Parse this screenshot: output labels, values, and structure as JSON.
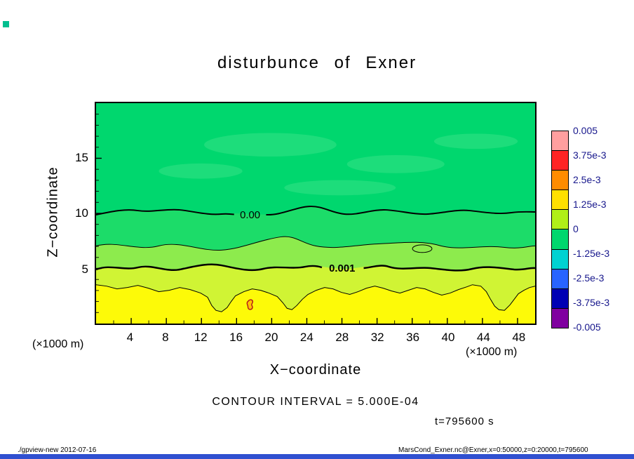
{
  "title": "disturbunce of Exner",
  "corner_marker_color": "#00bf8f",
  "axes": {
    "x_label": "X−coordinate",
    "y_label": "Z−coordinate",
    "x_unit_left": "(×1000 m)",
    "x_unit_right": "(×1000 m)"
  },
  "annotations": {
    "contour_interval": "CONTOUR INTERVAL = 5.000E-04",
    "time": "t=795600 s"
  },
  "colorbar": {
    "labels": [
      "0.005",
      "3.75e-3",
      "2.5e-3",
      "1.25e-3",
      "0",
      "-1.25e-3",
      "-2.5e-3",
      "-3.75e-3",
      "-0.005"
    ],
    "segment_colors": [
      "#ff9f9f",
      "#ff2424",
      "#ff8c00",
      "#ffe000",
      "#b0ef18",
      "#00d76e",
      "#00d2d2",
      "#2864ff",
      "#0000b4",
      "#8000a0"
    ],
    "label_color": "#17178c"
  },
  "footer": {
    "left": "./gpview-new  2012-07-16",
    "right": "MarsCond_Exner.nc@Exner,x=0:50000,z=0:20000,t=795600",
    "bar_color": "#3050d0"
  },
  "chart_data": {
    "type": "heatmap",
    "title": "disturbunce of Exner",
    "xlabel": "X-coordinate (×1000 m)",
    "ylabel": "Z-coordinate (×1000 m)",
    "xlim": [
      0,
      50
    ],
    "ylim": [
      0,
      20
    ],
    "x_ticks": [
      4,
      8,
      12,
      16,
      20,
      24,
      28,
      32,
      36,
      40,
      44,
      48
    ],
    "y_ticks": [
      5,
      10,
      15
    ],
    "contour_interval": 0.0005,
    "time_seconds": 795600,
    "contour_line_labels": [
      "0.00",
      "0.001"
    ],
    "contours": [
      {
        "level": 0.0,
        "approx_z": 10,
        "style": "thick"
      },
      {
        "level": 0.0005,
        "approx_z": 7,
        "style": "thin"
      },
      {
        "level": 0.001,
        "approx_z": 5,
        "style": "thick"
      },
      {
        "level": 0.0015,
        "approx_z": 3,
        "style": "thin"
      }
    ],
    "field_summary": "Exner disturbance: near-zero/slightly negative (green) above z≈10, increasing toward ≈1.5e-3 (yellow) near the surface below z≈3",
    "fill_colors": {
      "green_negative": "#00d76e",
      "green_band": "#1cdc69",
      "light_green_band": "#8deb4d",
      "yellow_green_band": "#d0f434",
      "yellow_band": "#fdfa08",
      "light_patch": "#35e287"
    },
    "legend_position": "right",
    "grid": false
  }
}
